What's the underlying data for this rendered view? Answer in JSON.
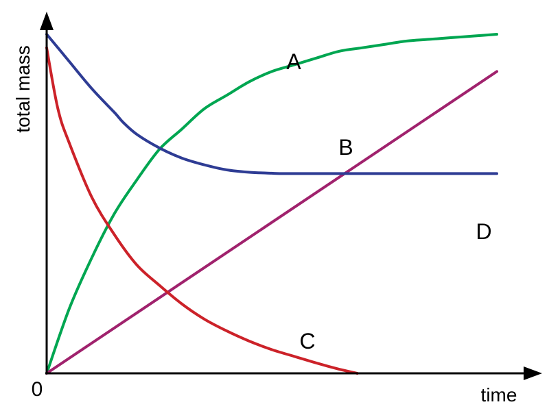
{
  "chart_data": {
    "type": "line",
    "title": "",
    "xlabel": "time",
    "ylabel": "total mass",
    "origin_label": "0",
    "xlim": [
      0,
      100
    ],
    "ylim": [
      0,
      100
    ],
    "grid": false,
    "series": [
      {
        "name": "A",
        "color": "#00a651",
        "x": [
          0,
          5,
          10,
          15,
          20,
          25,
          30,
          35,
          40,
          45,
          50,
          55,
          60,
          65,
          70,
          75,
          80,
          85,
          90,
          95,
          100
        ],
        "y": [
          0,
          19,
          34,
          47,
          57,
          66,
          72,
          78,
          82,
          86,
          89,
          91,
          93,
          95,
          96,
          97,
          98,
          98.5,
          99,
          99.5,
          100
        ]
      },
      {
        "name": "B",
        "color": "#a0226d",
        "x": [
          0,
          100
        ],
        "y": [
          0,
          89
        ]
      },
      {
        "name": "C",
        "color": "#cc2229",
        "x": [
          0,
          2.5,
          5,
          10,
          15,
          20,
          25,
          30,
          35,
          40,
          45,
          50,
          55,
          60,
          65,
          69
        ],
        "y": [
          96,
          78,
          68,
          52,
          41,
          32,
          26,
          20.5,
          16,
          12.5,
          9.5,
          7,
          5,
          3,
          1.2,
          0
        ]
      },
      {
        "name": "D",
        "color": "#2e3c94",
        "x": [
          0,
          5,
          10,
          15,
          17,
          20,
          25,
          30,
          35,
          40,
          45,
          50,
          53,
          60,
          70,
          80,
          90,
          100
        ],
        "y": [
          100,
          92,
          84,
          77,
          74,
          70.5,
          66.5,
          63.5,
          61.5,
          60,
          59.3,
          59,
          58.9,
          58.9,
          58.9,
          58.9,
          58.9,
          58.9
        ]
      }
    ]
  }
}
